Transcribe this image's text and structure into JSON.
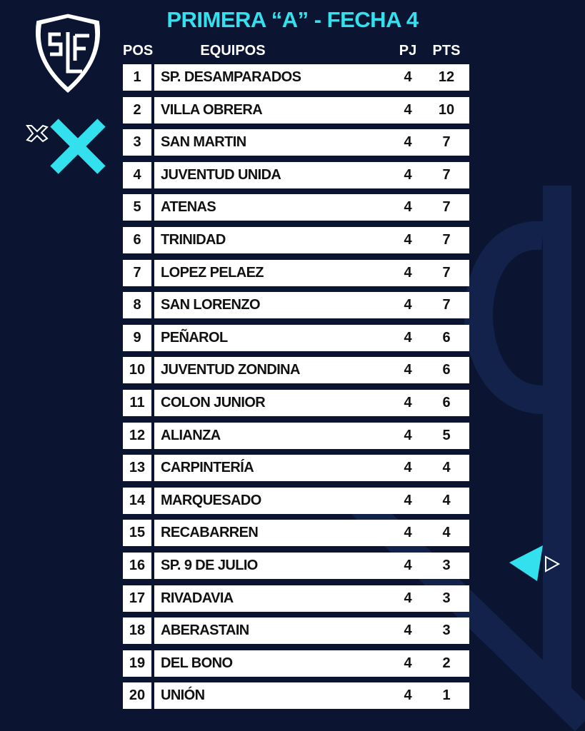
{
  "header": {
    "title": "PRIMERA “A” - FECHA 4"
  },
  "table": {
    "columns": [
      "POS",
      "EQUIPOS",
      "PJ",
      "PTS"
    ],
    "rows": [
      [
        1,
        "SP. DESAMPARADOS",
        4,
        12
      ],
      [
        2,
        "VILLA OBRERA",
        4,
        10
      ],
      [
        3,
        "SAN MARTIN",
        4,
        7
      ],
      [
        4,
        "JUVENTUD UNIDA",
        4,
        7
      ],
      [
        5,
        "ATENAS",
        4,
        7
      ],
      [
        6,
        "TRINIDAD",
        4,
        7
      ],
      [
        7,
        "LOPEZ PELAEZ",
        4,
        7
      ],
      [
        8,
        "SAN LORENZO",
        4,
        7
      ],
      [
        9,
        "PEÑAROL",
        4,
        6
      ],
      [
        10,
        "JUVENTUD ZONDINA",
        4,
        6
      ],
      [
        11,
        "COLON JUNIOR",
        4,
        6
      ],
      [
        12,
        "ALIANZA",
        4,
        5
      ],
      [
        13,
        "CARPINTERÍA",
        4,
        4
      ],
      [
        14,
        "MARQUESADO",
        4,
        4
      ],
      [
        15,
        "RECABARREN",
        4,
        4
      ],
      [
        16,
        "SP. 9 DE JULIO",
        4,
        3
      ],
      [
        17,
        "RIVADAVIA",
        4,
        3
      ],
      [
        18,
        "ABERASTAIN",
        4,
        3
      ],
      [
        19,
        "DEL BONO",
        4,
        2
      ],
      [
        20,
        "UNIÓN",
        4,
        1
      ]
    ]
  }
}
